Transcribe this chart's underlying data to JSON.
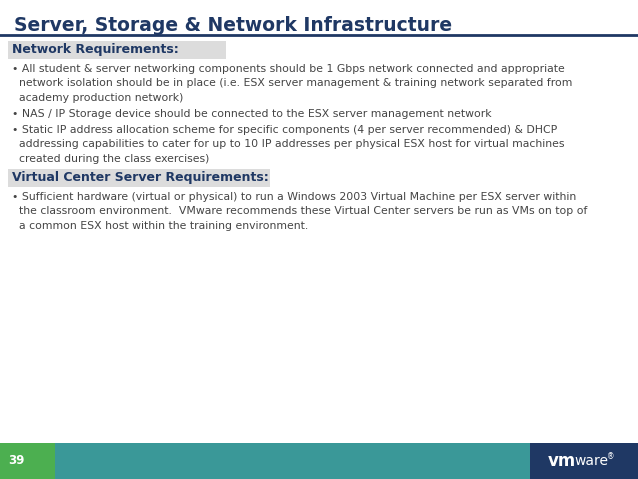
{
  "title": "Server, Storage & Network Infrastructure",
  "title_color": "#1F3864",
  "title_fontsize": 13.5,
  "header_line_color": "#1F3864",
  "bg_color": "#FFFFFF",
  "section1_header": "Network Requirements:",
  "section1_header_color": "#1F3864",
  "bullet1_1": "• All student & server networking components should be 1 Gbps network connected and appropriate\n  network isolation should be in place (i.e. ESX server management & training network separated from\n  academy production network)",
  "bullet1_2": "• NAS / IP Storage device should be connected to the ESX server management network",
  "bullet1_3": "• Static IP address allocation scheme for specific components (4 per server recommended) & DHCP\n  addressing capabilities to cater for up to 10 IP addresses per physical ESX host for virtual machines\n  created during the class exercises)",
  "section2_header": "Virtual Center Server Requirements:",
  "section2_header_color": "#1F3864",
  "bullet2_1": "• Sufficient hardware (virtual or physical) to run a Windows 2003 Virtual Machine per ESX server within\n  the classroom environment.  VMware recommends these Virtual Center servers be run as VMs on top of\n  a common ESX host within the training environment.",
  "body_text_color": "#444444",
  "body_fontsize": 7.8,
  "footer_page_num": "39",
  "footer_bg_green": "#4CAF50",
  "footer_bg_teal": "#3A9898",
  "footer_bg_navy": "#1F3864",
  "footer_triangle_light_green": "#7DC97D",
  "vmware_bold": "vm",
  "vmware_normal": "ware®"
}
